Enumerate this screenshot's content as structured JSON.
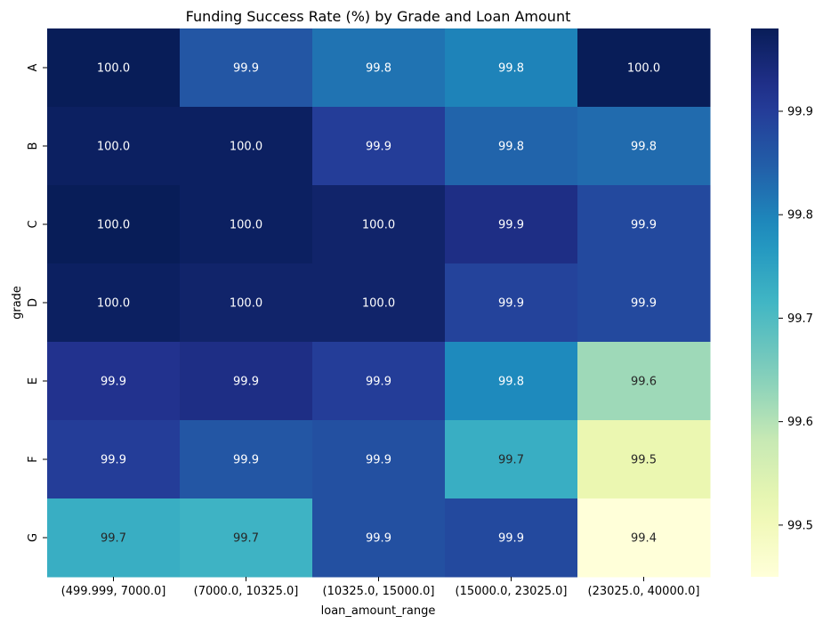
{
  "chart_data": {
    "type": "heatmap",
    "title": "Funding Success Rate (%) by Grade and Loan Amount",
    "xlabel": "loan_amount_range",
    "ylabel": "grade",
    "x_categories": [
      "(499.999, 7000.0]",
      "(7000.0, 10325.0]",
      "(10325.0, 15000.0]",
      "(15000.0, 23025.0]",
      "(23025.0, 40000.0]"
    ],
    "y_categories": [
      "A",
      "B",
      "C",
      "D",
      "E",
      "F",
      "G"
    ],
    "values": [
      [
        99.98,
        99.86,
        99.82,
        99.8,
        99.98
      ],
      [
        99.97,
        99.97,
        99.9,
        99.84,
        99.83
      ],
      [
        99.98,
        99.97,
        99.96,
        99.93,
        99.88
      ],
      [
        99.97,
        99.96,
        99.96,
        99.89,
        99.88
      ],
      [
        99.92,
        99.93,
        99.9,
        99.79,
        99.62
      ],
      [
        99.9,
        99.86,
        99.87,
        99.73,
        99.52
      ],
      [
        99.73,
        99.72,
        99.87,
        99.88,
        99.45
      ]
    ],
    "labels": [
      [
        "100.0",
        "99.9",
        "99.8",
        "99.8",
        "100.0"
      ],
      [
        "100.0",
        "100.0",
        "99.9",
        "99.8",
        "99.8"
      ],
      [
        "100.0",
        "100.0",
        "100.0",
        "99.9",
        "99.9"
      ],
      [
        "100.0",
        "100.0",
        "100.0",
        "99.9",
        "99.9"
      ],
      [
        "99.9",
        "99.9",
        "99.9",
        "99.8",
        "99.6"
      ],
      [
        "99.9",
        "99.9",
        "99.9",
        "99.7",
        "99.5"
      ],
      [
        "99.7",
        "99.7",
        "99.9",
        "99.9",
        "99.4"
      ]
    ],
    "colormap": "YlGnBu",
    "colorbar": {
      "vmin": 99.45,
      "vmax": 99.98,
      "ticks": [
        99.5,
        99.6,
        99.7,
        99.8,
        99.9
      ],
      "tick_labels": [
        "99.5",
        "99.6",
        "99.7",
        "99.8",
        "99.9"
      ]
    },
    "label_colors": {
      "dark_cell": "#ffffff",
      "light_cell": "#262626"
    }
  }
}
